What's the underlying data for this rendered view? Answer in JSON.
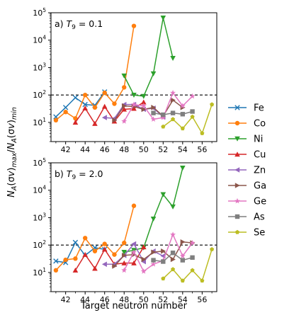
{
  "chart_data": {
    "type": "line",
    "xlabel": "Target neutron number",
    "ylabel": "N_A(σv)_max/N_A(σv)_min",
    "xlim": [
      40.5,
      57.5
    ],
    "ylim": [
      2,
      100000
    ],
    "yscale": "log",
    "x_ticks": [
      42,
      44,
      46,
      48,
      50,
      52,
      54,
      56
    ],
    "y_ticks": [
      10,
      100,
      1000,
      10000,
      100000
    ],
    "reference_line": 100,
    "legend_position": "right",
    "panels": [
      {
        "label": "a) T_9 = 0.1",
        "label_prefix": "a) ",
        "label_var": "T",
        "label_sub": "9",
        "label_suffix": " = 0.1",
        "series": [
          {
            "name": "Fe",
            "color": "#1f77b4",
            "marker": "x",
            "x": [
              41,
              42,
              43,
              44,
              45,
              46
            ],
            "y": [
              16,
              35,
              80,
              45,
              42,
              130
            ]
          },
          {
            "name": "Co",
            "color": "#ff7f0e",
            "marker": "o",
            "x": [
              41,
              42,
              43,
              44,
              45,
              46,
              47,
              48,
              49
            ],
            "y": [
              12,
              24,
              14,
              100,
              35,
              120,
              48,
              190,
              33000
            ]
          },
          {
            "name": "Ni",
            "color": "#2ca02c",
            "marker": "v",
            "x": [
              48,
              49,
              50,
              51,
              52,
              53
            ],
            "y": [
              500,
              100,
              90,
              600,
              65000,
              2200
            ]
          },
          {
            "name": "Cu",
            "color": "#d62728",
            "marker": "^",
            "x": [
              43,
              44,
              45,
              46,
              47,
              48,
              49,
              50
            ],
            "y": [
              10,
              33,
              9,
              38,
              11,
              30,
              32,
              55
            ]
          },
          {
            "name": "Zn",
            "color": "#9467bd",
            "marker": "<",
            "x": [
              46,
              47,
              48,
              49,
              50,
              51,
              52
            ],
            "y": [
              15,
              14,
              45,
              45,
              30,
              33,
              16
            ]
          },
          {
            "name": "Ga",
            "color": "#8c564b",
            "marker": ">",
            "x": [
              47,
              48,
              49,
              50,
              51,
              52,
              53,
              54
            ],
            "y": [
              12,
              40,
              38,
              30,
              35,
              17,
              65,
              35
            ]
          },
          {
            "name": "Ge",
            "color": "#e377c2",
            "marker": "*",
            "x": [
              48,
              49,
              50,
              51,
              52,
              53,
              54,
              55
            ],
            "y": [
              11,
              45,
              40,
              13,
              15,
              120,
              40,
              90
            ]
          },
          {
            "name": "As",
            "color": "#7f7f7f",
            "marker": "s",
            "x": [
              51,
              52,
              53,
              54,
              55
            ],
            "y": [
              22,
              19,
              22,
              20,
              25
            ]
          },
          {
            "name": "Se",
            "color": "#bcbd22",
            "marker": "p",
            "x": [
              52,
              53,
              54,
              55,
              56,
              57
            ],
            "y": [
              7,
              13,
              6,
              16,
              4,
              45
            ]
          }
        ]
      },
      {
        "label": "b) T_9 = 2.0",
        "label_prefix": "b) ",
        "label_var": "T",
        "label_sub": "9",
        "label_suffix": " = 2.0",
        "series": [
          {
            "name": "Fe",
            "color": "#1f77b4",
            "marker": "x",
            "x": [
              41,
              42,
              43,
              44,
              45,
              46
            ],
            "y": [
              26,
              23,
              125,
              42,
              80,
              70
            ]
          },
          {
            "name": "Co",
            "color": "#ff7f0e",
            "marker": "o",
            "x": [
              41,
              42,
              43,
              44,
              45,
              46,
              47,
              48,
              49
            ],
            "y": [
              12,
              29,
              32,
              180,
              60,
              110,
              45,
              120,
              2700
            ]
          },
          {
            "name": "Ni",
            "color": "#2ca02c",
            "marker": "v",
            "x": [
              48,
              49,
              50,
              51,
              52,
              53,
              54
            ],
            "y": [
              55,
              65,
              80,
              900,
              7000,
              2500,
              65000
            ]
          },
          {
            "name": "Cu",
            "color": "#d62728",
            "marker": "^",
            "x": [
              43,
              44,
              45,
              46,
              47,
              48,
              49,
              50
            ],
            "y": [
              12,
              45,
              14,
              70,
              20,
              22,
              22,
              85
            ]
          },
          {
            "name": "Zn",
            "color": "#9467bd",
            "marker": "<",
            "x": [
              46,
              47,
              48,
              49,
              50,
              51,
              52
            ],
            "y": [
              20,
              20,
              42,
              110,
              25,
              60,
              40
            ]
          },
          {
            "name": "Ga",
            "color": "#8c564b",
            "marker": ">",
            "x": [
              47,
              48,
              49,
              50,
              51,
              52,
              53,
              54,
              55
            ],
            "y": [
              17,
              42,
              45,
              30,
              55,
              60,
              30,
              130,
              120
            ]
          },
          {
            "name": "Ge",
            "color": "#e377c2",
            "marker": "*",
            "x": [
              48,
              49,
              50,
              51,
              52,
              53,
              54,
              55
            ],
            "y": [
              12,
              55,
              11,
              20,
              27,
              240,
              40,
              120
            ]
          },
          {
            "name": "As",
            "color": "#7f7f7f",
            "marker": "s",
            "x": [
              51,
              52,
              53,
              54,
              55
            ],
            "y": [
              28,
              25,
              52,
              28,
              35
            ]
          },
          {
            "name": "Se",
            "color": "#bcbd22",
            "marker": "p",
            "x": [
              52,
              53,
              54,
              55,
              56,
              57
            ],
            "y": [
              6,
              13,
              5,
              12,
              5,
              70
            ]
          }
        ]
      }
    ]
  }
}
